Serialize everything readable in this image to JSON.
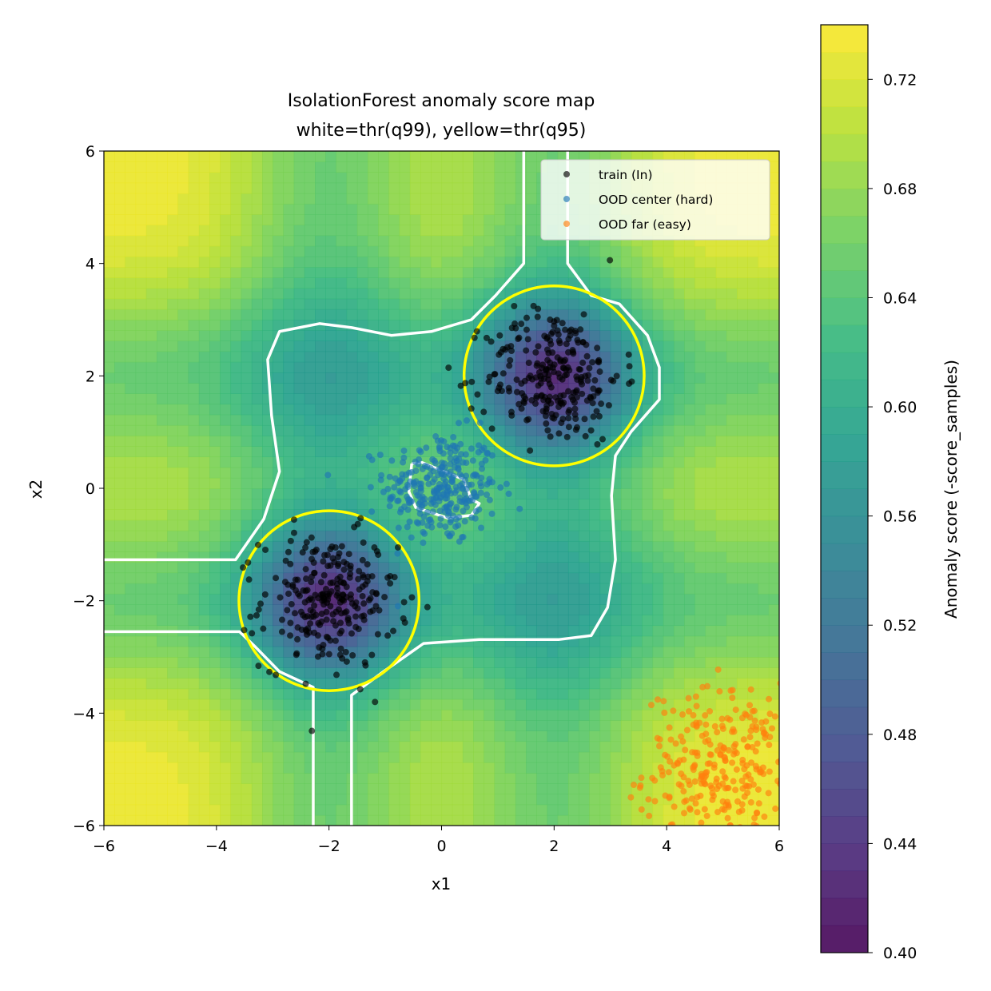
{
  "chart_data": {
    "type": "heatmap",
    "title": "IsolationForest anomaly score map",
    "subtitle": "white=thr(q99), yellow=thr(q95)",
    "xlabel": "x1",
    "ylabel": "x2",
    "xlim": [
      -6,
      6
    ],
    "ylim": [
      -6,
      6
    ],
    "xticks": [
      -6,
      -4,
      -2,
      0,
      2,
      4,
      6
    ],
    "yticks": [
      -6,
      -4,
      -2,
      0,
      2,
      4,
      6
    ],
    "xtick_labels": [
      "−6",
      "−4",
      "−2",
      "0",
      "2",
      "4",
      "6"
    ],
    "ytick_labels": [
      "−6",
      "−4",
      "−2",
      "0",
      "2",
      "4",
      "6"
    ],
    "colormap": "viridis",
    "colorbar": {
      "label": "Anomaly score (-score_samples)",
      "range": [
        0.4,
        0.74
      ],
      "ticks": [
        0.4,
        0.44,
        0.48,
        0.52,
        0.56,
        0.6,
        0.64,
        0.68,
        0.72
      ],
      "tick_labels": [
        "0.40",
        "0.44",
        "0.48",
        "0.52",
        "0.56",
        "0.60",
        "0.64",
        "0.68",
        "0.72"
      ]
    },
    "grid": false,
    "legend": {
      "placement": "top-right",
      "entries": [
        {
          "label": "train (In)",
          "color": "#000000"
        },
        {
          "label": "OOD center (hard)",
          "color": "#1f77b4"
        },
        {
          "label": "OOD far (easy)",
          "color": "#ff7f0e"
        }
      ]
    },
    "series": [
      {
        "name": "train (In)",
        "color": "#000000",
        "clusters": [
          {
            "center": [
              -2,
              -2
            ],
            "std": 0.6,
            "n": 250
          },
          {
            "center": [
              2,
              2
            ],
            "std": 0.6,
            "n": 250
          }
        ]
      },
      {
        "name": "OOD center (hard)",
        "color": "#1f77b4",
        "clusters": [
          {
            "center": [
              0,
              0
            ],
            "std": 0.5,
            "n": 300
          }
        ]
      },
      {
        "name": "OOD far (easy)",
        "color": "#ff7f0e",
        "clusters": [
          {
            "center": [
              5,
              -5
            ],
            "std": 0.7,
            "n": 300
          }
        ]
      }
    ],
    "thresholds": [
      {
        "name": "thr(q99)",
        "color": "#ffffff",
        "outline": [
          [
            -6,
            -1.27
          ],
          [
            -3.66,
            -1.27
          ],
          [
            -3.16,
            -0.55
          ],
          [
            -2.88,
            0.3
          ],
          [
            -3.02,
            1.29
          ],
          [
            -3.09,
            2.29
          ],
          [
            -2.88,
            2.79
          ],
          [
            -2.17,
            2.93
          ],
          [
            -1.6,
            2.86
          ],
          [
            -0.89,
            2.72
          ],
          [
            -0.18,
            2.79
          ],
          [
            0.53,
            3.0
          ],
          [
            0.96,
            3.43
          ],
          [
            1.46,
            4.0
          ],
          [
            1.46,
            6
          ]
        ],
        "outline2": [
          [
            2.24,
            6
          ],
          [
            2.24,
            4.0
          ],
          [
            2.66,
            3.43
          ],
          [
            3.16,
            3.28
          ],
          [
            3.66,
            2.72
          ],
          [
            3.87,
            2.15
          ],
          [
            3.87,
            1.58
          ],
          [
            3.37,
            1.01
          ],
          [
            3.09,
            0.58
          ],
          [
            3.02,
            -0.13
          ],
          [
            3.09,
            -1.27
          ],
          [
            2.95,
            -2.12
          ],
          [
            2.66,
            -2.62
          ],
          [
            2.09,
            -2.69
          ],
          [
            0.67,
            -2.69
          ],
          [
            -0.32,
            -2.76
          ],
          [
            -1.03,
            -3.26
          ],
          [
            -1.6,
            -3.68
          ],
          [
            -1.6,
            -6
          ]
        ],
        "outline3": [
          [
            -2.28,
            -6
          ],
          [
            -2.28,
            -3.54
          ],
          [
            -2.88,
            -3.26
          ],
          [
            -3.3,
            -2.83
          ],
          [
            -3.59,
            -2.55
          ],
          [
            -6,
            -2.55
          ]
        ],
        "inner": [
          [
            -0.53,
            0.44
          ],
          [
            -0.35,
            0.46
          ],
          [
            0.04,
            0.3
          ],
          [
            0.39,
            0.16
          ],
          [
            0.53,
            -0.2
          ],
          [
            0.67,
            -0.27
          ],
          [
            0.53,
            -0.48
          ],
          [
            0.11,
            -0.53
          ],
          [
            -0.46,
            -0.34
          ],
          [
            -0.58,
            -0.06
          ],
          [
            -0.53,
            0.44
          ]
        ]
      },
      {
        "name": "thr(q95)",
        "color": "#ffff00",
        "rings": [
          {
            "center": [
              -2,
              -2
            ],
            "radius": 1.6
          },
          {
            "center": [
              2,
              2
            ],
            "radius": 1.6
          }
        ]
      }
    ]
  }
}
